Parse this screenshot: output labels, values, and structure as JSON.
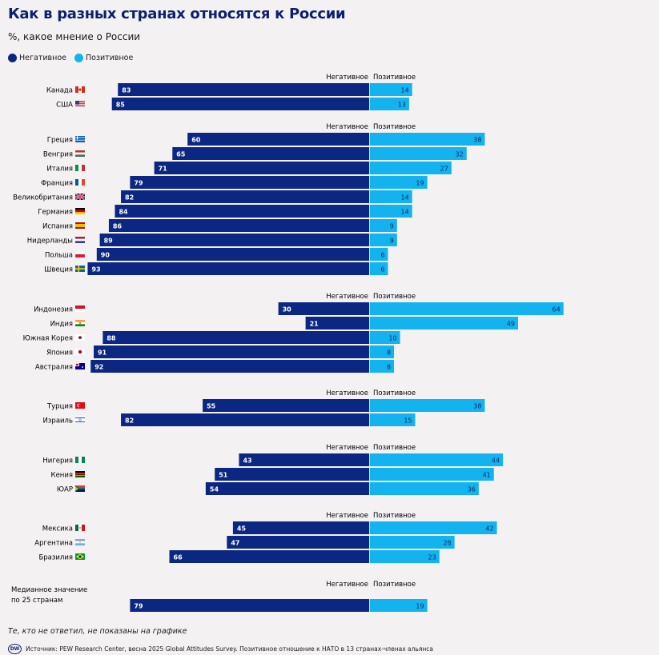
{
  "title": "Как в разных странах относятся к России",
  "subtitle": "%, какое мнение о России",
  "legend": {
    "negative": "Негативное",
    "positive": "Позитивное"
  },
  "colors": {
    "negative": "#0c2782",
    "positive": "#12b3ef"
  },
  "chart_data": {
    "type": "bar",
    "orientation": "diverging-horizontal",
    "series_names": [
      "Негативное",
      "Позитивное"
    ],
    "groups": [
      {
        "header_negative": "Негативное",
        "header_positive": "Позитивное",
        "rows": [
          {
            "country": "Канада",
            "flag": "canada-flag",
            "negative": 83,
            "positive": 14
          },
          {
            "country": "США",
            "flag": "usa-flag",
            "negative": 85,
            "positive": 13
          }
        ]
      },
      {
        "header_negative": "Негативное",
        "header_positive": "Позитивное",
        "rows": [
          {
            "country": "Греция",
            "flag": "greece-flag",
            "negative": 60,
            "positive": 38
          },
          {
            "country": "Венгрия",
            "flag": "hungary-flag",
            "negative": 65,
            "positive": 32
          },
          {
            "country": "Италия",
            "flag": "italy-flag",
            "negative": 71,
            "positive": 27
          },
          {
            "country": "Франция",
            "flag": "france-flag",
            "negative": 79,
            "positive": 19
          },
          {
            "country": "Великобритания",
            "flag": "uk-flag",
            "negative": 82,
            "positive": 14
          },
          {
            "country": "Германия",
            "flag": "germany-flag",
            "negative": 84,
            "positive": 14
          },
          {
            "country": "Испания",
            "flag": "spain-flag",
            "negative": 86,
            "positive": 9
          },
          {
            "country": "Нидерланды",
            "flag": "netherlands-flag",
            "negative": 89,
            "positive": 9
          },
          {
            "country": "Польша",
            "flag": "poland-flag",
            "negative": 90,
            "positive": 6
          },
          {
            "country": "Швеция",
            "flag": "sweden-flag",
            "negative": 93,
            "positive": 6
          }
        ]
      },
      {
        "header_negative": "Негативное",
        "header_positive": "Позитивное",
        "rows": [
          {
            "country": "Индонезия",
            "flag": "indonesia-flag",
            "negative": 30,
            "positive": 64
          },
          {
            "country": "Индия",
            "flag": "india-flag",
            "negative": 21,
            "positive": 49
          },
          {
            "country": "Южная Корея",
            "flag": "south-korea-flag",
            "negative": 88,
            "positive": 10
          },
          {
            "country": "Япония",
            "flag": "japan-flag",
            "negative": 91,
            "positive": 8
          },
          {
            "country": "Австралия",
            "flag": "australia-flag",
            "negative": 92,
            "positive": 8
          }
        ]
      },
      {
        "header_negative": "Негативное",
        "header_positive": "Позитивное",
        "rows": [
          {
            "country": "Турция",
            "flag": "turkey-flag",
            "negative": 55,
            "positive": 38
          },
          {
            "country": "Израиль",
            "flag": "israel-flag",
            "negative": 82,
            "positive": 15
          }
        ]
      },
      {
        "header_negative": "Негативное",
        "header_positive": "Позитивное",
        "rows": [
          {
            "country": "Нигерия",
            "flag": "nigeria-flag",
            "negative": 43,
            "positive": 44
          },
          {
            "country": "Кения",
            "flag": "kenya-flag",
            "negative": 51,
            "positive": 41
          },
          {
            "country": "ЮАР",
            "flag": "south-africa-flag",
            "negative": 54,
            "positive": 36
          }
        ]
      },
      {
        "header_negative": "Негативное",
        "header_positive": "Позитивное",
        "rows": [
          {
            "country": "Мексика",
            "flag": "mexico-flag",
            "negative": 45,
            "positive": 42
          },
          {
            "country": "Аргентина",
            "flag": "argentina-flag",
            "negative": 47,
            "positive": 28
          },
          {
            "country": "Бразилия",
            "flag": "brazil-flag",
            "negative": 66,
            "positive": 23
          }
        ]
      },
      {
        "header_negative": "Негативное",
        "header_positive": "Позитивное",
        "rows": [
          {
            "country": "Медианное значение\nпо 25 странам",
            "flag": "",
            "negative": 79,
            "positive": 19
          }
        ]
      }
    ]
  },
  "note": "Те, кто не ответил, не показаны на графике",
  "logo": "DW",
  "source": "Источник: PEW Research Center, весна 2025 Global Attitudes Survey. Позитивное отношение к НАТО в 13 странах-членах альянса"
}
